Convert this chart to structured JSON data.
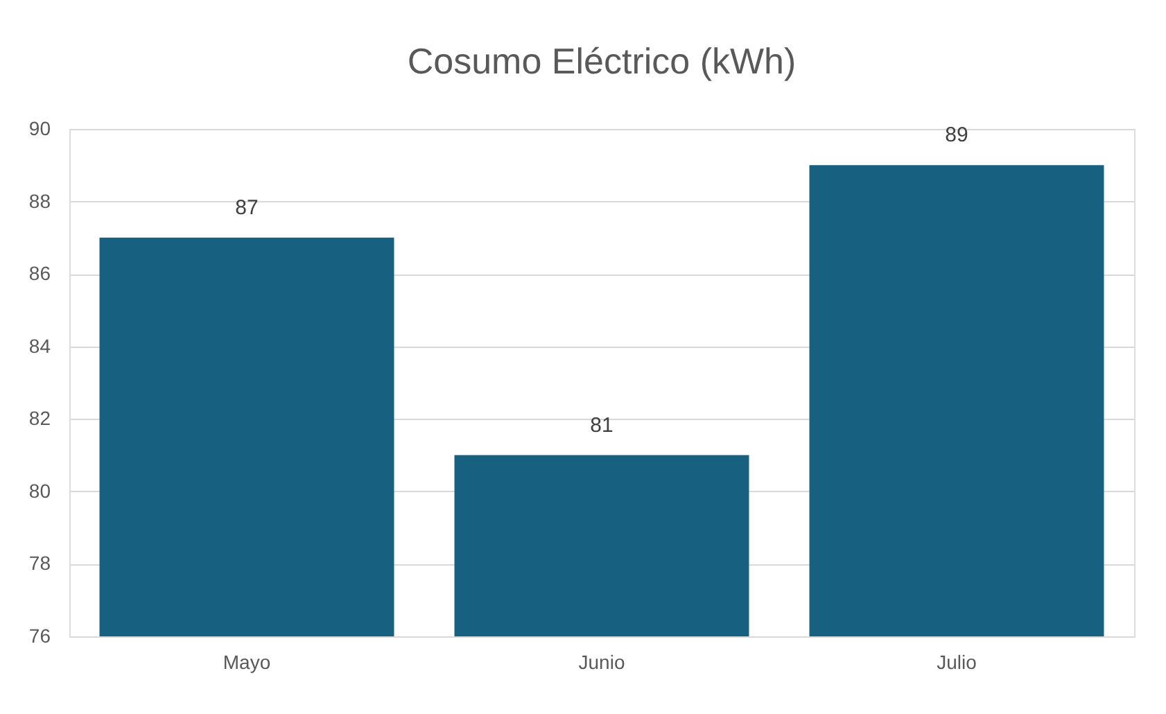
{
  "chart_data": {
    "type": "bar",
    "title": "Cosumo Eléctrico (kWh)",
    "categories": [
      "Mayo",
      "Junio",
      "Julio"
    ],
    "values": [
      87,
      81,
      89
    ],
    "color": "#17607f",
    "ylim": [
      76,
      90
    ],
    "yticks": [
      76,
      78,
      80,
      82,
      84,
      86,
      88,
      90
    ],
    "grid": "y",
    "data_labels": true
  }
}
